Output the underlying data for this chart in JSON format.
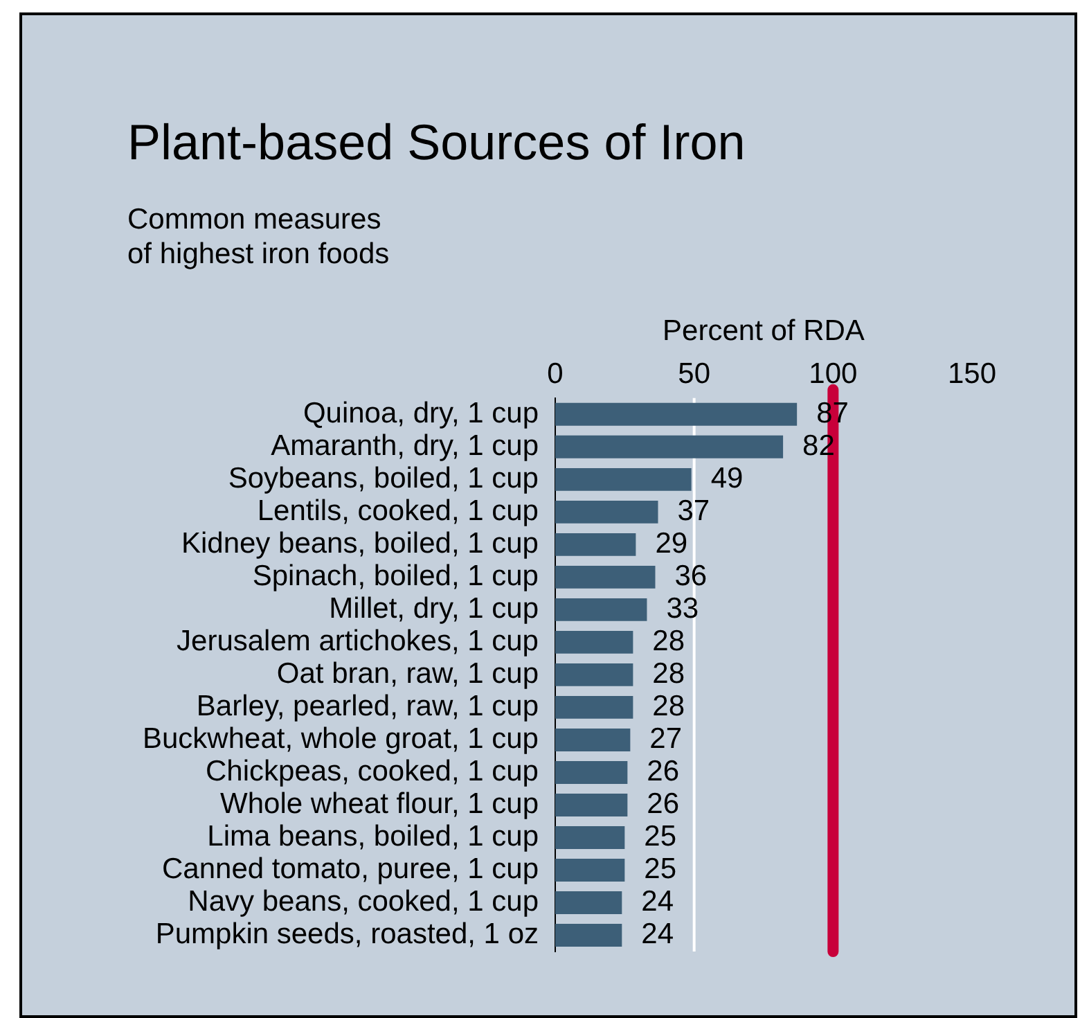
{
  "chart_data": {
    "type": "bar",
    "orientation": "horizontal",
    "title": "Plant-based Sources of Iron",
    "subtitle": "Common measures\nof highest iron foods",
    "xlabel": "Percent of RDA",
    "categories": [
      "Quinoa, dry, 1 cup",
      "Amaranth, dry, 1 cup",
      "Soybeans, boiled, 1 cup",
      "Lentils, cooked, 1 cup",
      "Kidney beans, boiled, 1 cup",
      "Spinach, boiled, 1 cup",
      "Millet, dry, 1 cup",
      "Jerusalem artichokes, 1 cup",
      "Oat bran, raw, 1 cup",
      "Barley, pearled, raw, 1 cup",
      "Buckwheat, whole groat, 1 cup",
      "Chickpeas, cooked, 1 cup",
      "Whole wheat flour, 1 cup",
      "Lima beans, boiled, 1 cup",
      "Canned tomato, puree, 1 cup",
      "Navy beans, cooked, 1 cup",
      "Pumpkin seeds, roasted, 1 oz"
    ],
    "values": [
      87,
      82,
      49,
      37,
      29,
      36,
      33,
      28,
      28,
      28,
      27,
      26,
      26,
      25,
      25,
      24,
      24
    ],
    "color": "#3d5f78",
    "data_labels": true,
    "xlim": [
      0,
      150
    ],
    "xticks": [
      0,
      50,
      100,
      150
    ],
    "legend": false,
    "ref_lines": [
      {
        "axis": "x",
        "value": 50,
        "color": "#ffffff"
      },
      {
        "axis": "x",
        "value": 100,
        "color": "#c8003a"
      }
    ]
  }
}
